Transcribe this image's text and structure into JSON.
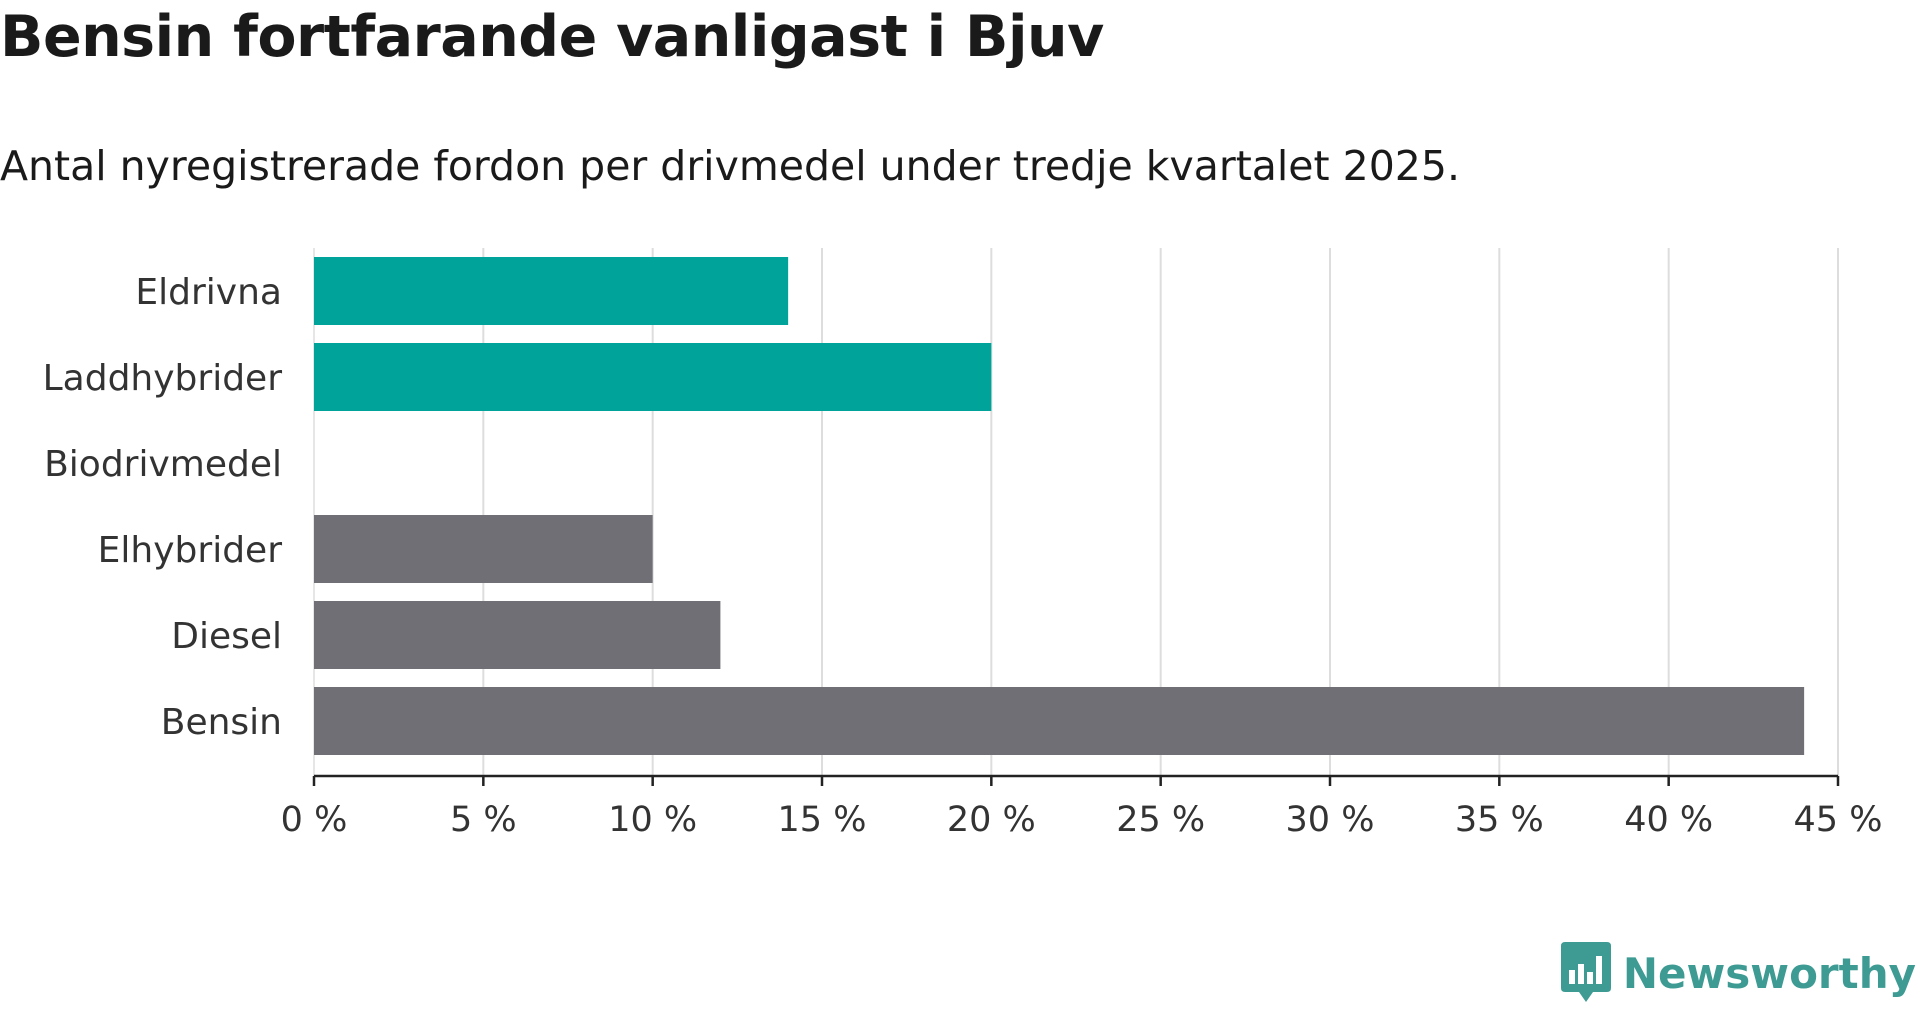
{
  "header": {
    "title": "Bensin fortfarande vanligast i Bjuv",
    "subtitle": "Antal nyregistrerade fordon per drivmedel under tredje kvartalet 2025."
  },
  "brand": {
    "name": "Newsworthy",
    "logo_icon": "bar-chart-icon",
    "color": "#3d9b94"
  },
  "chart_data": {
    "type": "bar",
    "orientation": "horizontal",
    "title": "Bensin fortfarande vanligast i Bjuv",
    "subtitle": "Antal nyregistrerade fordon per drivmedel under tredje kvartalet 2025.",
    "categories": [
      "Eldrivna",
      "Laddhybrider",
      "Biodrivmedel",
      "Elhybrider",
      "Diesel",
      "Bensin"
    ],
    "values": [
      14,
      20,
      0,
      10,
      12,
      44
    ],
    "colors": [
      "#00a39a",
      "#00a39a",
      "#00a39a",
      "#706f75",
      "#706f75",
      "#706f75"
    ],
    "unit": "%",
    "xlim": [
      0,
      45
    ],
    "xticks": [
      0,
      5,
      10,
      15,
      20,
      25,
      30,
      35,
      40,
      45
    ],
    "xtick_labels": [
      "0 %",
      "5 %",
      "10 %",
      "15 %",
      "20 %",
      "25 %",
      "30 %",
      "35 %",
      "40 %",
      "45 %"
    ],
    "grid": true,
    "xlabel": "",
    "ylabel": ""
  }
}
